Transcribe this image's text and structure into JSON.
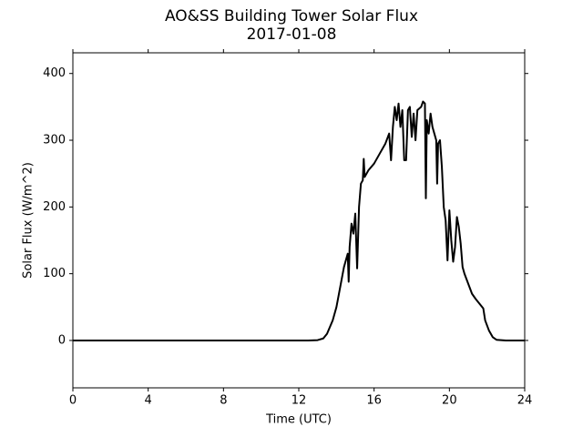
{
  "chart_data": {
    "type": "line",
    "title": "AO&SS Building Tower Solar Flux",
    "subtitle": "2017-01-08",
    "x_label": "Time (UTC)",
    "y_label": "Solar Flux (W/m^2)",
    "xlim": [
      0,
      24
    ],
    "xticks": [
      0,
      4,
      8,
      12,
      16,
      20,
      24
    ],
    "ylim": [
      -71,
      431
    ],
    "yticks": [
      0,
      100,
      200,
      300,
      400
    ],
    "x": [
      0,
      12.5,
      13,
      13.3,
      13.5,
      13.8,
      14.0,
      14.2,
      14.4,
      14.6,
      14.65,
      14.7,
      14.8,
      14.9,
      15.0,
      15.1,
      15.2,
      15.3,
      15.4,
      15.45,
      15.5,
      15.7,
      16.0,
      16.3,
      16.6,
      16.8,
      16.9,
      17.0,
      17.1,
      17.2,
      17.3,
      17.4,
      17.5,
      17.6,
      17.7,
      17.8,
      17.9,
      18.0,
      18.1,
      18.2,
      18.3,
      18.5,
      18.6,
      18.7,
      18.75,
      18.8,
      18.9,
      19.0,
      19.1,
      19.2,
      19.3,
      19.35,
      19.4,
      19.5,
      19.6,
      19.7,
      19.8,
      19.9,
      20.0,
      20.1,
      20.2,
      20.3,
      20.4,
      20.5,
      20.6,
      20.7,
      20.8,
      21.0,
      21.2,
      21.4,
      21.6,
      21.8,
      21.9,
      22.1,
      22.3,
      22.5,
      23,
      24
    ],
    "series": [
      {
        "name": "Solar Flux",
        "color": "#000000",
        "values": [
          0,
          0,
          0.5,
          3,
          10,
          30,
          50,
          80,
          110,
          130,
          88,
          140,
          175,
          160,
          190,
          108,
          200,
          235,
          240,
          272,
          245,
          255,
          265,
          280,
          295,
          310,
          270,
          320,
          350,
          330,
          355,
          320,
          345,
          270,
          270,
          345,
          350,
          305,
          340,
          300,
          345,
          350,
          358,
          355,
          213,
          330,
          310,
          340,
          320,
          310,
          300,
          235,
          295,
          300,
          260,
          200,
          180,
          120,
          195,
          150,
          118,
          140,
          185,
          170,
          145,
          110,
          100,
          85,
          70,
          62,
          55,
          48,
          30,
          15,
          5,
          1,
          0,
          0
        ]
      }
    ],
    "grid": false
  }
}
